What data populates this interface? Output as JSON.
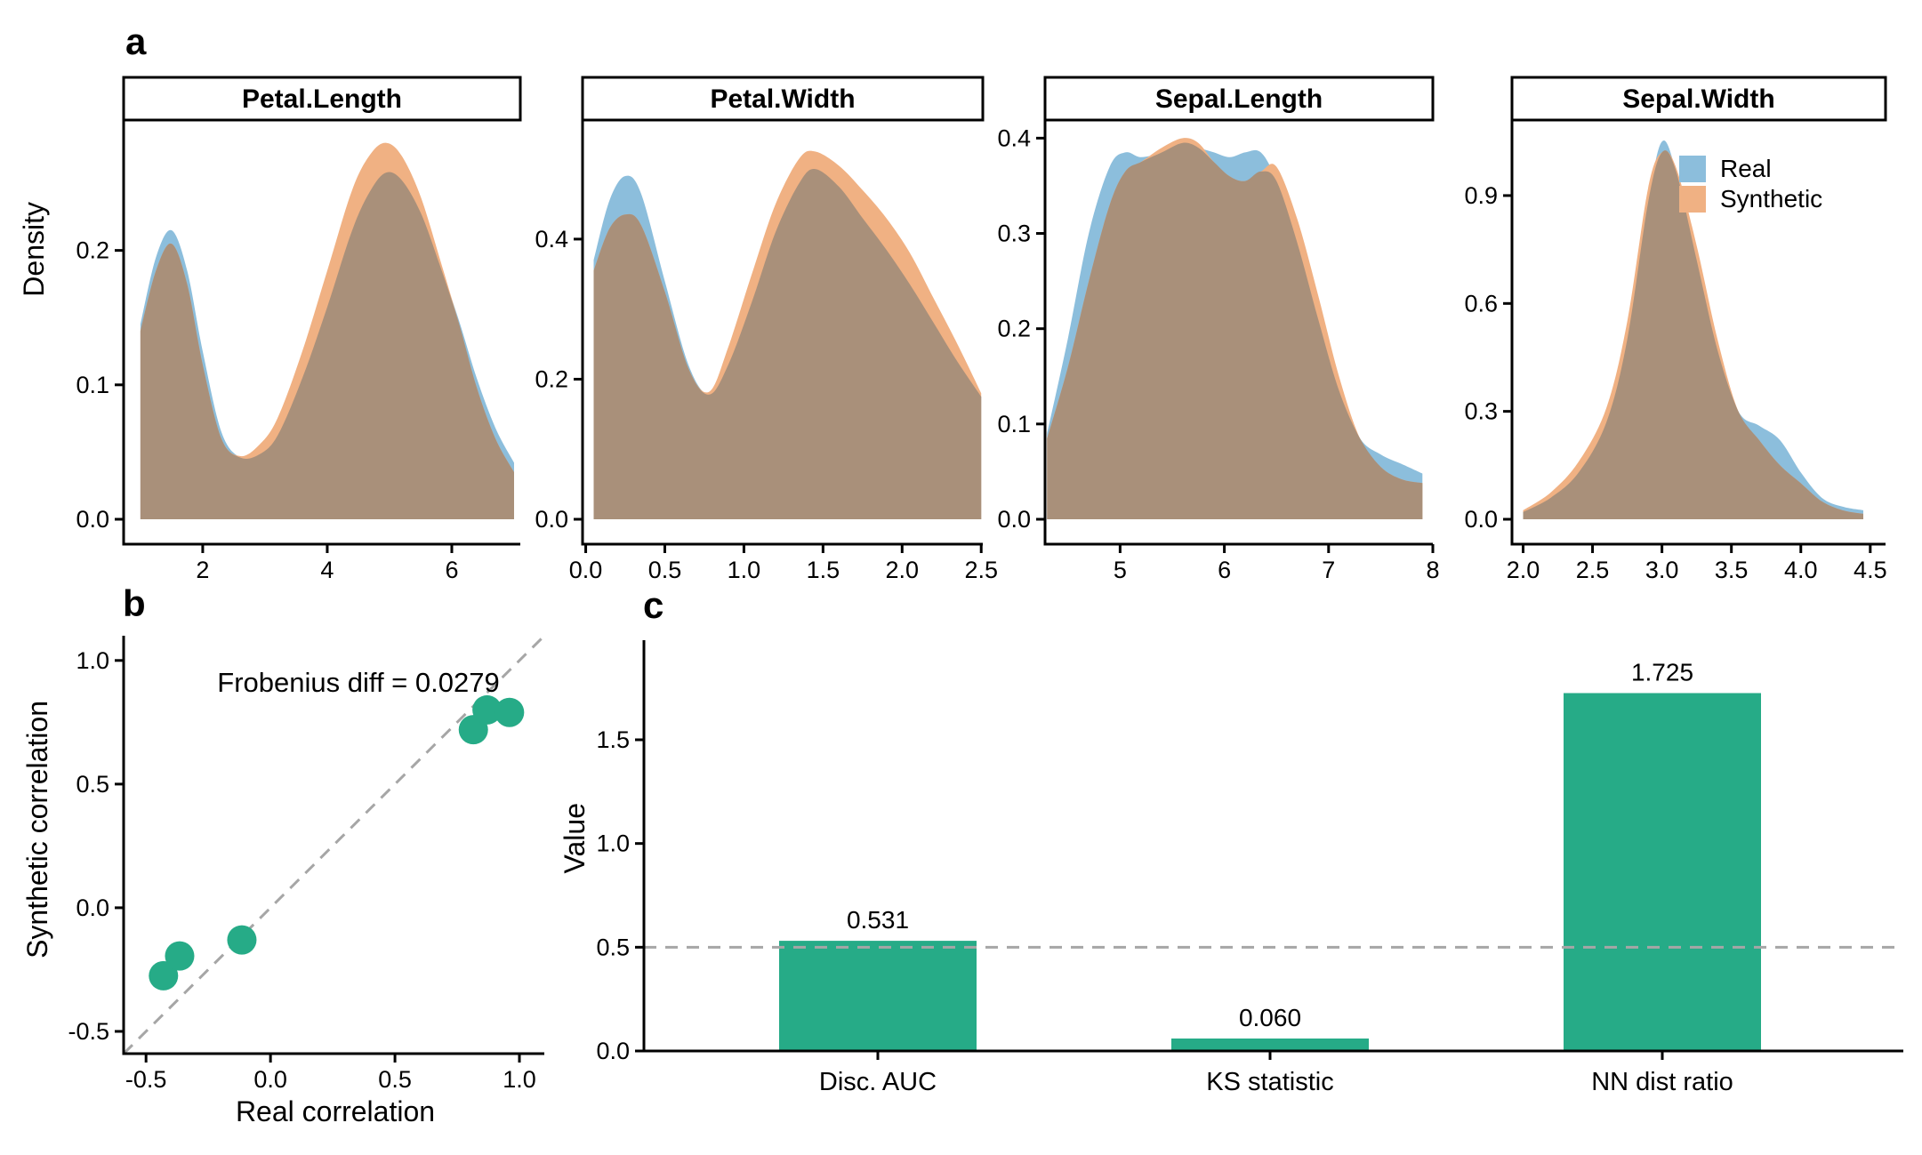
{
  "figure": {
    "panels": {
      "a": {
        "letter": "a"
      },
      "b": {
        "letter": "b"
      },
      "c": {
        "letter": "c"
      }
    },
    "legend": {
      "items": [
        {
          "label": "Real",
          "color_key": "real"
        },
        {
          "label": "Synthetic",
          "color_key": "synthetic"
        }
      ]
    }
  },
  "colors": {
    "real": "#8CBEDC",
    "synthetic": "#F0B183",
    "overlap": "#A9907A",
    "accent_green": "#26AB87",
    "dashed_line": "#A6A6A6",
    "axis": "#000000"
  },
  "chart_data": [
    {
      "type": "area",
      "id": "density-facets",
      "ylabel": "Density",
      "legend_entries": [
        "Real",
        "Synthetic"
      ],
      "legend_position": "inside-top-right-of-last-facet",
      "grid": false,
      "facets": [
        {
          "title": "Petal.Length",
          "xlim": [
            0.73,
            7.1
          ],
          "ylim": [
            0,
            0.297
          ],
          "xticks": [
            2,
            4,
            6
          ],
          "xtick_labels": [
            "2",
            "4",
            "6"
          ],
          "yticks": [
            0,
            0.1,
            0.2
          ],
          "ytick_labels": [
            "0.0",
            "0.1",
            "0.2"
          ],
          "x": [
            1.0,
            1.25,
            1.5,
            1.75,
            2.0,
            2.3,
            2.6,
            2.9,
            3.2,
            3.6,
            4.0,
            4.4,
            4.7,
            4.95,
            5.2,
            5.5,
            5.8,
            6.1,
            6.4,
            6.7,
            7.0
          ],
          "real": [
            0.145,
            0.195,
            0.215,
            0.185,
            0.125,
            0.065,
            0.046,
            0.048,
            0.062,
            0.105,
            0.158,
            0.215,
            0.245,
            0.258,
            0.252,
            0.228,
            0.19,
            0.15,
            0.105,
            0.068,
            0.042
          ],
          "synthetic": [
            0.14,
            0.185,
            0.205,
            0.175,
            0.115,
            0.06,
            0.047,
            0.055,
            0.075,
            0.125,
            0.185,
            0.245,
            0.272,
            0.28,
            0.27,
            0.24,
            0.195,
            0.148,
            0.098,
            0.06,
            0.035
          ]
        },
        {
          "title": "Petal.Width",
          "xlim": [
            -0.02,
            2.51
          ],
          "ylim": [
            0,
            0.57
          ],
          "xticks": [
            0,
            0.5,
            1.0,
            1.5,
            2.0,
            2.5
          ],
          "xtick_labels": [
            "0.0",
            "0.5",
            "1.0",
            "1.5",
            "2.0",
            "2.5"
          ],
          "yticks": [
            0,
            0.2,
            0.4
          ],
          "ytick_labels": [
            "0.0",
            "0.2",
            "0.4"
          ],
          "x": [
            0.05,
            0.15,
            0.25,
            0.35,
            0.5,
            0.65,
            0.78,
            0.9,
            1.05,
            1.2,
            1.35,
            1.45,
            1.6,
            1.75,
            1.9,
            2.05,
            2.2,
            2.35,
            2.5
          ],
          "real": [
            0.37,
            0.455,
            0.49,
            0.465,
            0.34,
            0.22,
            0.178,
            0.22,
            0.31,
            0.41,
            0.48,
            0.5,
            0.475,
            0.43,
            0.385,
            0.335,
            0.28,
            0.225,
            0.175
          ],
          "synthetic": [
            0.355,
            0.415,
            0.435,
            0.42,
            0.325,
            0.215,
            0.182,
            0.245,
            0.35,
            0.45,
            0.515,
            0.525,
            0.505,
            0.47,
            0.43,
            0.38,
            0.315,
            0.25,
            0.18
          ]
        },
        {
          "title": "Sepal.Length",
          "xlim": [
            4.28,
            8.0
          ],
          "ylim": [
            0,
            0.419
          ],
          "xticks": [
            5,
            6,
            7,
            8
          ],
          "xtick_labels": [
            "5",
            "6",
            "7",
            "8"
          ],
          "yticks": [
            0,
            0.1,
            0.2,
            0.3,
            0.4
          ],
          "ytick_labels": [
            "0.0",
            "0.1",
            "0.2",
            "0.3",
            "0.4"
          ],
          "x": [
            4.3,
            4.5,
            4.7,
            4.9,
            5.05,
            5.2,
            5.4,
            5.6,
            5.75,
            5.9,
            6.05,
            6.2,
            6.35,
            6.5,
            6.7,
            6.9,
            7.1,
            7.3,
            7.5,
            7.7,
            7.9
          ],
          "real": [
            0.09,
            0.19,
            0.3,
            0.37,
            0.385,
            0.38,
            0.385,
            0.395,
            0.39,
            0.385,
            0.38,
            0.385,
            0.385,
            0.355,
            0.29,
            0.21,
            0.135,
            0.085,
            0.068,
            0.058,
            0.048
          ],
          "synthetic": [
            0.085,
            0.16,
            0.25,
            0.33,
            0.365,
            0.375,
            0.39,
            0.4,
            0.395,
            0.375,
            0.36,
            0.355,
            0.365,
            0.37,
            0.315,
            0.235,
            0.15,
            0.085,
            0.055,
            0.042,
            0.038
          ]
        },
        {
          "title": "Sepal.Width",
          "xlim": [
            1.92,
            4.61
          ],
          "ylim": [
            0,
            1.11
          ],
          "xticks": [
            2.0,
            2.5,
            3.0,
            3.5,
            4.0,
            4.5
          ],
          "xtick_labels": [
            "2.0",
            "2.5",
            "3.0",
            "3.5",
            "4.0",
            "4.5"
          ],
          "yticks": [
            0,
            0.3,
            0.6,
            0.9
          ],
          "ytick_labels": [
            "0.0",
            "0.3",
            "0.6",
            "0.9"
          ],
          "x": [
            2.0,
            2.2,
            2.4,
            2.6,
            2.75,
            2.9,
            3.0,
            3.1,
            3.25,
            3.4,
            3.55,
            3.7,
            3.85,
            4.0,
            4.15,
            4.3,
            4.45
          ],
          "real": [
            0.02,
            0.06,
            0.13,
            0.27,
            0.5,
            0.88,
            1.05,
            0.97,
            0.72,
            0.47,
            0.3,
            0.26,
            0.22,
            0.13,
            0.06,
            0.035,
            0.025
          ],
          "synthetic": [
            0.025,
            0.075,
            0.16,
            0.31,
            0.55,
            0.92,
            1.02,
            0.98,
            0.76,
            0.5,
            0.3,
            0.22,
            0.15,
            0.1,
            0.05,
            0.025,
            0.015
          ]
        }
      ]
    },
    {
      "type": "scatter",
      "id": "correlation-scatter",
      "xlabel": "Real correlation",
      "ylabel": "Synthetic correlation",
      "annotation": "Frobenius diff = 0.0279",
      "frobenius_diff": 0.0279,
      "identity_line": true,
      "grid": false,
      "xlim": [
        -0.59,
        1.1
      ],
      "ylim": [
        -0.59,
        1.1
      ],
      "xticks": [
        -0.5,
        0.0,
        0.5,
        1.0
      ],
      "xtick_labels": [
        "-0.5",
        "0.0",
        "0.5",
        "1.0"
      ],
      "yticks": [
        -0.5,
        0.0,
        0.5,
        1.0
      ],
      "ytick_labels": [
        "-0.5",
        "0.0",
        "0.5",
        "1.0"
      ],
      "points": [
        {
          "x": -0.43,
          "y": -0.275
        },
        {
          "x": -0.365,
          "y": -0.195
        },
        {
          "x": -0.115,
          "y": -0.13
        },
        {
          "x": 0.815,
          "y": 0.72
        },
        {
          "x": 0.87,
          "y": 0.8
        },
        {
          "x": 0.96,
          "y": 0.79
        }
      ]
    },
    {
      "type": "bar",
      "id": "metrics-bar",
      "ylabel": "Value",
      "grid": false,
      "categories": [
        "Disc. AUC",
        "KS statistic",
        "NN dist ratio"
      ],
      "values": [
        0.531,
        0.06,
        1.725
      ],
      "value_labels": [
        "0.531",
        "0.060",
        "1.725"
      ],
      "reference_line": 0.5,
      "ylim": [
        0,
        1.98
      ],
      "yticks": [
        0,
        0.5,
        1.0,
        1.5
      ],
      "ytick_labels": [
        "0.0",
        "0.5",
        "1.0",
        "1.5"
      ]
    }
  ]
}
